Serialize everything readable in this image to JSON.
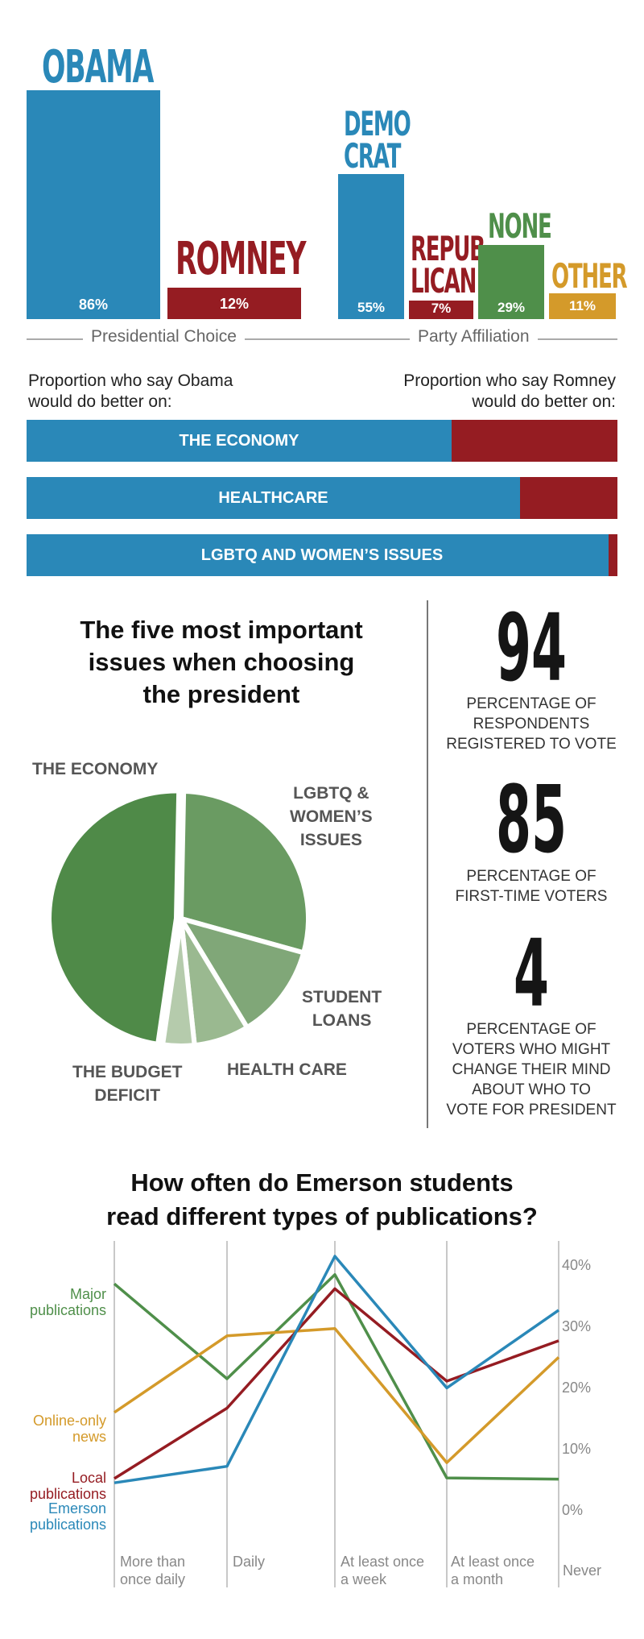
{
  "colors": {
    "blue": "#2a88b8",
    "red": "#951c22",
    "green": "#4f8f4a",
    "orange": "#d49a2a"
  },
  "presidential": {
    "axis_label": "Presidential Choice",
    "bars": [
      {
        "name": "OBAMA",
        "pct_label": "86%",
        "value": 86,
        "color": "#2a88b8"
      },
      {
        "name": "ROMNEY",
        "pct_label": "12%",
        "value": 12,
        "color": "#951c22"
      }
    ]
  },
  "party": {
    "axis_label": "Party Affiliation",
    "bars": [
      {
        "name_line1": "DEMO",
        "name_line2": "CRAT",
        "pct_label": "55%",
        "value": 55,
        "color": "#2a88b8"
      },
      {
        "name_line1": "REPUB",
        "name_line2": "LICAN",
        "pct_label": "7%",
        "value": 7,
        "color": "#951c22"
      },
      {
        "name_line1": "NONE",
        "name_line2": "",
        "pct_label": "29%",
        "value": 29,
        "color": "#4f8f4a"
      },
      {
        "name_line1": "OTHER",
        "name_line2": "",
        "pct_label": "11%",
        "value": 11,
        "color": "#d49a2a"
      }
    ]
  },
  "proportion": {
    "left_line1": "Proportion who say Obama",
    "left_line2": "would do better on:",
    "right_line1": "Proportion who say Romney",
    "right_line2": "would do better on:",
    "bars": [
      {
        "label": "THE ECONOMY",
        "obama_share": 0.72
      },
      {
        "label": "HEALTHCARE",
        "obama_share": 0.835
      },
      {
        "label": "LGBTQ AND WOMEN’S ISSUES",
        "obama_share": 0.985
      }
    ]
  },
  "issues": {
    "title_line1": "The five most important",
    "title_line2": "issues when choosing",
    "title_line3": "the president",
    "labels": {
      "economy": "THE ECONOMY",
      "lgbtq_1": "LGBTQ &",
      "lgbtq_2": "WOMEN’S",
      "lgbtq_3": "ISSUES",
      "loans_1": "STUDENT",
      "loans_2": "LOANS",
      "health": "HEALTH CARE",
      "budget_1": "THE BUDGET",
      "budget_2": "DEFICIT"
    }
  },
  "stats": [
    {
      "number": "94",
      "line1": "PERCENTAGE OF",
      "line2": "RESPONDENTS",
      "line3": "REGISTERED TO VOTE",
      "line4": "",
      "line5": ""
    },
    {
      "number": "85",
      "line1": "PERCENTAGE OF",
      "line2": "FIRST-TIME VOTERS",
      "line3": "",
      "line4": "",
      "line5": ""
    },
    {
      "number": "4",
      "line1": "PERCENTAGE OF",
      "line2": "VOTERS WHO MIGHT",
      "line3": "CHANGE THEIR MIND",
      "line4": "ABOUT WHO TO",
      "line5": "VOTE FOR PRESIDENT"
    }
  ],
  "reading": {
    "title_line1": "How often do Emerson students",
    "title_line2": "read different types of publications?",
    "series_labels": {
      "major_1": "Major",
      "major_2": "publications",
      "online_1": "Online-only",
      "online_2": "news",
      "local_1": "Local",
      "local_2": "publications",
      "emerson_1": "Emerson",
      "emerson_2": "publications"
    },
    "x_ticks": [
      {
        "l1": "More than",
        "l2": "once daily"
      },
      {
        "l1": "Daily",
        "l2": ""
      },
      {
        "l1": "At least once",
        "l2": "a week"
      },
      {
        "l1": "At least once",
        "l2": "a month"
      },
      {
        "l1": "Never",
        "l2": ""
      }
    ],
    "y_ticks": [
      "40%",
      "30%",
      "20%",
      "10%",
      "0%"
    ]
  },
  "chart_data": [
    {
      "type": "bar",
      "xlabel": "Presidential Choice",
      "categories": [
        "OBAMA",
        "ROMNEY"
      ],
      "values": [
        86,
        12
      ]
    },
    {
      "type": "bar",
      "xlabel": "Party Affiliation",
      "categories": [
        "DEMOCRAT",
        "REPUBLICAN",
        "NONE",
        "OTHER"
      ],
      "values": [
        55,
        7,
        29,
        11
      ]
    },
    {
      "type": "bar",
      "categories": [
        "THE ECONOMY",
        "HEALTHCARE",
        "LGBTQ AND WOMEN’S ISSUES"
      ],
      "series": [
        {
          "name": "Proportion who say Obama would do better on",
          "values": [
            72,
            83.5,
            98.5
          ]
        },
        {
          "name": "Proportion who say Romney would do better on",
          "values": [
            28,
            16.5,
            1.5
          ]
        }
      ]
    },
    {
      "type": "pie",
      "title": "The five most important issues when choosing the president",
      "categories": [
        "THE ECONOMY",
        "LGBTQ & WOMEN’S ISSUES",
        "STUDENT LOANS",
        "HEALTH CARE",
        "THE BUDGET DEFICIT"
      ],
      "values": [
        48,
        29,
        12,
        7,
        4
      ]
    },
    {
      "type": "line",
      "title": "How often do Emerson students read different types of publications?",
      "categories": [
        "More than once daily",
        "Daily",
        "At least once a week",
        "At least once a month",
        "Never"
      ],
      "ylim": [
        0,
        40
      ],
      "series": [
        {
          "name": "Major publications",
          "values": [
            35.5,
            20,
            37,
            3.8,
            3.6
          ]
        },
        {
          "name": "Online-only news",
          "values": [
            14.5,
            27,
            28.2,
            6.3,
            23.5
          ]
        },
        {
          "name": "Local publications",
          "values": [
            3.7,
            15.2,
            34.7,
            19.6,
            26.2
          ]
        },
        {
          "name": "Emerson publications",
          "values": [
            3,
            5.7,
            40,
            18.5,
            31.2
          ]
        }
      ]
    }
  ]
}
